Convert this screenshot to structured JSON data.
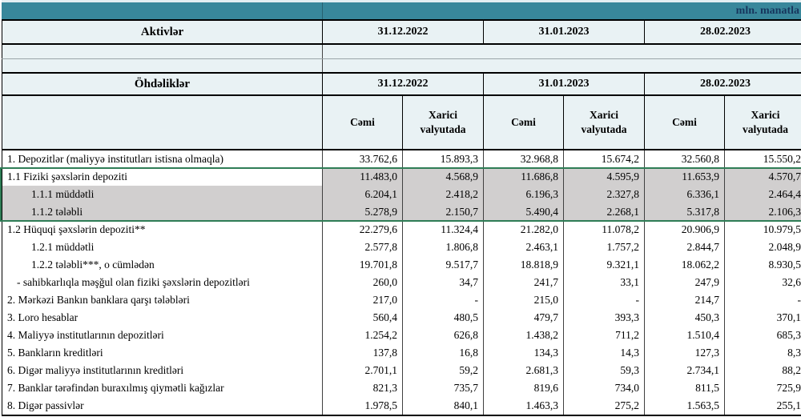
{
  "unit_label": "mln. manatla",
  "assets": {
    "title": "Aktivlər",
    "dates": [
      "31.12.2022",
      "31.01.2023",
      "28.02.2023"
    ]
  },
  "liabilities": {
    "title": "Öhdəliklər",
    "dates": [
      "31.12.2022",
      "31.01.2023",
      "28.02.2023"
    ],
    "col_headers": [
      "Cəmi",
      "Xarici valyutada",
      "Cəmi",
      "Xarici valyutada",
      "Cəmi",
      "Xarici valyutada"
    ]
  },
  "rows": [
    {
      "label": "1. Depozitlər (maliyyə institutları istisna olmaqla)",
      "indent": 0,
      "highlight": "none",
      "values": [
        "33.762,6",
        "15.893,3",
        "32.968,8",
        "15.674,2",
        "32.560,8",
        "15.550,2"
      ]
    },
    {
      "label": "1.1 Fiziki şəxslərin depoziti",
      "indent": 0,
      "highlight": "values",
      "values": [
        "11.483,0",
        "4.568,9",
        "11.686,8",
        "4.595,9",
        "11.653,9",
        "4.570,7"
      ]
    },
    {
      "label": "1.1.1 müddətli",
      "indent": 2,
      "highlight": "full",
      "values": [
        "6.204,1",
        "2.418,2",
        "6.196,3",
        "2.327,8",
        "6.336,1",
        "2.464,4"
      ]
    },
    {
      "label": "1.1.2 tələbli",
      "indent": 2,
      "highlight": "full",
      "values": [
        "5.278,9",
        "2.150,7",
        "5.490,4",
        "2.268,1",
        "5.317,8",
        "2.106,3"
      ]
    },
    {
      "label": "1.2 Hüquqi şəxslərin depoziti**",
      "indent": 0,
      "highlight": "none",
      "values": [
        "22.279,6",
        "11.324,4",
        "21.282,0",
        "11.078,2",
        "20.906,9",
        "10.979,5"
      ]
    },
    {
      "label": "1.2.1 müddətli",
      "indent": 2,
      "highlight": "none",
      "values": [
        "2.577,8",
        "1.806,8",
        "2.463,1",
        "1.757,2",
        "2.844,7",
        "2.048,9"
      ]
    },
    {
      "label": "1.2.2 tələbli***, o cümlədən",
      "indent": 2,
      "highlight": "none",
      "values": [
        "19.701,8",
        "9.517,7",
        "18.818,9",
        "9.321,1",
        "18.062,2",
        "8.930,5"
      ]
    },
    {
      "label": "- sahibkarlıqla məşğul olan fiziki şəxslərin depozitləri",
      "indent": 1,
      "highlight": "none",
      "values": [
        "260,0",
        "34,7",
        "241,7",
        "33,1",
        "247,9",
        "32,6"
      ]
    },
    {
      "label": "2. Mərkəzi Bankın banklara qarşı tələbləri",
      "indent": 0,
      "highlight": "none",
      "values": [
        "217,0",
        "-",
        "215,0",
        "-",
        "214,7",
        "-"
      ]
    },
    {
      "label": "3. Loro hesablar",
      "indent": 0,
      "highlight": "none",
      "values": [
        "560,4",
        "480,5",
        "479,7",
        "393,3",
        "450,3",
        "370,1"
      ]
    },
    {
      "label": "4. Maliyyə institutlarının  depozitləri",
      "indent": 0,
      "highlight": "none",
      "values": [
        "1.254,2",
        "626,8",
        "1.438,2",
        "711,2",
        "1.510,4",
        "685,3"
      ]
    },
    {
      "label": "5. Bankların kreditləri",
      "indent": 0,
      "highlight": "none",
      "values": [
        "137,8",
        "16,8",
        "134,3",
        "14,3",
        "127,3",
        "8,3"
      ]
    },
    {
      "label": "6. Digər maliyyə institutlarının kreditləri",
      "indent": 0,
      "highlight": "none",
      "values": [
        "2.701,1",
        "59,2",
        "2.681,3",
        "59,3",
        "2.734,1",
        "88,2"
      ]
    },
    {
      "label": "7. Banklar tərəfindən buraxılmış qiymətli kağızlar",
      "indent": 0,
      "highlight": "none",
      "values": [
        "821,3",
        "735,7",
        "819,6",
        "734,0",
        "811,5",
        "725,9"
      ]
    },
    {
      "label": "8. Digər passivlər",
      "indent": 0,
      "highlight": "none",
      "values": [
        "1.978,5",
        "840,1",
        "1.463,3",
        "275,2",
        "1.563,5",
        "255,1"
      ]
    }
  ],
  "colors": {
    "teal_band": "#38879B",
    "header_bg": "#E9F2F4",
    "highlight_gray": "#D1CFCF",
    "selection_green": "#2F7D56",
    "unit_text": "#17365D"
  }
}
